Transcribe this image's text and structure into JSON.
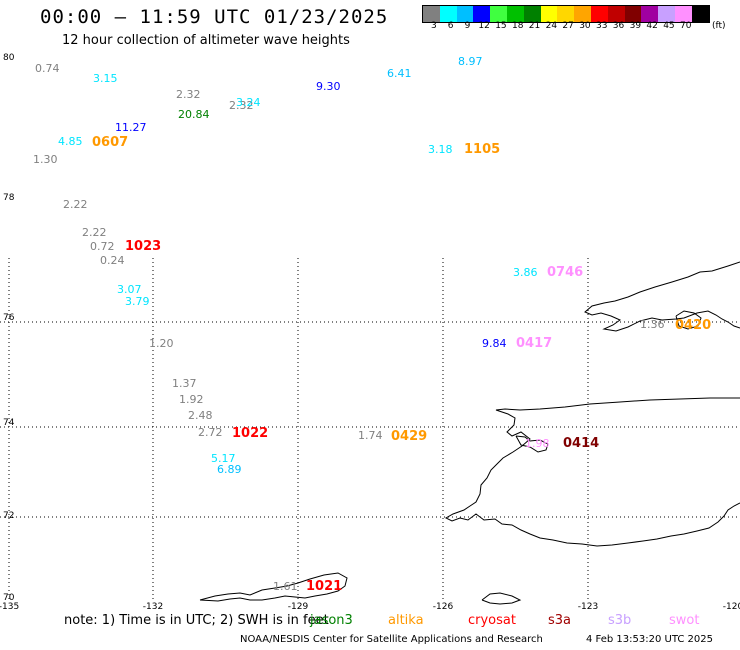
{
  "header": {
    "title": "00:00 – 11:59 UTC 01/23/2025",
    "subtitle": "12 hour collection of altimeter wave heights"
  },
  "colorbar": {
    "units": "(ft)",
    "bins": [
      {
        "label": "3",
        "color": "#808080"
      },
      {
        "label": "6",
        "color": "#00ffff"
      },
      {
        "label": "9",
        "color": "#00bfff"
      },
      {
        "label": "12",
        "color": "#0000ff"
      },
      {
        "label": "15",
        "color": "#40ff40"
      },
      {
        "label": "18",
        "color": "#00c000"
      },
      {
        "label": "21",
        "color": "#008000"
      },
      {
        "label": "24",
        "color": "#ffff00"
      },
      {
        "label": "27",
        "color": "#ffd700"
      },
      {
        "label": "30",
        "color": "#ffa500"
      },
      {
        "label": "33",
        "color": "#ff0000"
      },
      {
        "label": "36",
        "color": "#c00000"
      },
      {
        "label": "39",
        "color": "#800000"
      },
      {
        "label": "42",
        "color": "#a000a0"
      },
      {
        "label": "45",
        "color": "#c8a0ff"
      },
      {
        "label": "70",
        "color": "#ff90ff"
      },
      {
        "label": "",
        "color": "#000000"
      }
    ]
  },
  "map": {
    "lon_ticks": [
      "-135",
      "-132",
      "-129",
      "-126",
      "-123",
      "-120"
    ],
    "lat_ticks": [
      "80",
      "78",
      "76",
      "74",
      "72",
      "70"
    ],
    "points": [
      {
        "text": "0.74",
        "color": "#808080"
      },
      {
        "text": "3.15",
        "color": "#00e5ff"
      },
      {
        "text": "2.32",
        "color": "#808080"
      },
      {
        "text": "9.30",
        "color": "#0000ff"
      },
      {
        "text": "6.41",
        "color": "#00bfff"
      },
      {
        "text": "8.97",
        "color": "#00bfff"
      },
      {
        "text": "2.32",
        "color": "#808080"
      },
      {
        "text": "3.24",
        "color": "#00e5ff"
      },
      {
        "text": "20.84",
        "color": "#008000"
      },
      {
        "text": "11.27",
        "color": "#0000ff"
      },
      {
        "text": "4.85",
        "color": "#00e5ff"
      },
      {
        "text": "0607",
        "color": "#ff9900"
      },
      {
        "text": "1.30",
        "color": "#808080"
      },
      {
        "text": "3.18",
        "color": "#00e5ff"
      },
      {
        "text": "1105",
        "color": "#ff9900"
      },
      {
        "text": "2.22",
        "color": "#808080"
      },
      {
        "text": "2.22",
        "color": "#808080"
      },
      {
        "text": "0.72",
        "color": "#808080"
      },
      {
        "text": "1023",
        "color": "#ff0000"
      },
      {
        "text": "0.24",
        "color": "#808080"
      },
      {
        "text": "3.86",
        "color": "#00e5ff"
      },
      {
        "text": "0746",
        "color": "#ff90ff"
      },
      {
        "text": "3.07",
        "color": "#00e5ff"
      },
      {
        "text": "3.79",
        "color": "#00e5ff"
      },
      {
        "text": "1.36",
        "color": "#808080"
      },
      {
        "text": "0420",
        "color": "#ff9900"
      },
      {
        "text": "1.20",
        "color": "#808080"
      },
      {
        "text": "9.84",
        "color": "#0000ff"
      },
      {
        "text": "0417",
        "color": "#ff90ff"
      },
      {
        "text": "1.37",
        "color": "#808080"
      },
      {
        "text": "1.92",
        "color": "#808080"
      },
      {
        "text": "2.48",
        "color": "#808080"
      },
      {
        "text": "2.72",
        "color": "#808080"
      },
      {
        "text": "1022",
        "color": "#ff0000"
      },
      {
        "text": "1.74",
        "color": "#808080"
      },
      {
        "text": "0429",
        "color": "#ff9900"
      },
      {
        "text": "1.98",
        "color": "#ff90ff"
      },
      {
        "text": "0414",
        "color": "#800000"
      },
      {
        "text": "5.17",
        "color": "#00e5ff"
      },
      {
        "text": "6.89",
        "color": "#00bfff"
      },
      {
        "text": "1.61",
        "color": "#808080"
      },
      {
        "text": "1021",
        "color": "#ff0000"
      }
    ]
  },
  "footer": {
    "note": "note: 1) Time is in UTC; 2) SWH is in feet",
    "satellites": [
      {
        "name": "jason3",
        "color": "#008000"
      },
      {
        "name": "altika",
        "color": "#ff9900"
      },
      {
        "name": "cryosat",
        "color": "#ff0000"
      },
      {
        "name": "s3a",
        "color": "#a00000"
      },
      {
        "name": "s3b",
        "color": "#c8a0ff"
      },
      {
        "name": "swot",
        "color": "#ff90ff"
      }
    ],
    "credit": "NOAA/NESDIS Center for Satellite Applications and Research",
    "timestamp": "4 Feb 13:53:20 UTC 2025"
  }
}
